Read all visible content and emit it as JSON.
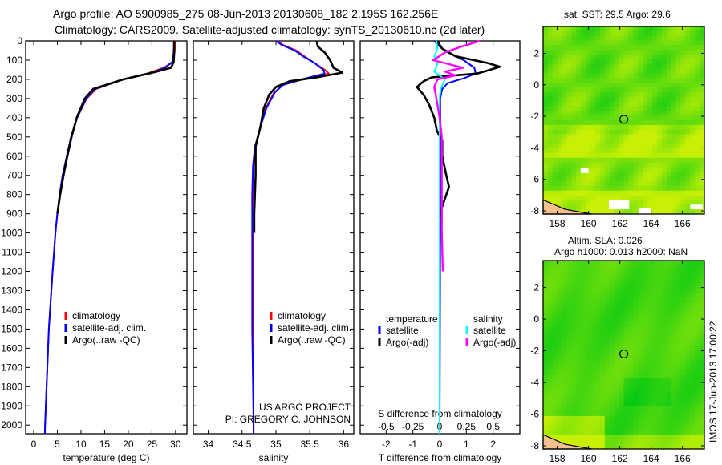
{
  "title": {
    "line1": "Argo profile: AO 5900985_275 08-Jun-2013 20130608_182 2.195S 162.256E",
    "line2": "Climatology: CARS2009. Satellite-adjusted climatology: synTS_20130610.nc (2d later)"
  },
  "credit": {
    "line1": "US ARGO PROJECT",
    "line2": "PI: GREGORY C. JOHNSON"
  },
  "side_stamp": "IMOS 17-Jun-2013 17:00:22",
  "colors": {
    "climatology": "#ff0000",
    "satellite": "#0000ff",
    "argo": "#000000",
    "sal_sat": "#00ffff",
    "sal_argo": "#ff00ff"
  },
  "chart_data": [
    {
      "type": "line",
      "id": "temperature",
      "xlabel": "temperature (deg C)",
      "ylabel": "",
      "xlim": [
        -1.7,
        32.4
      ],
      "ylim": [
        2045,
        0
      ],
      "xticks": [
        0,
        5,
        10,
        15,
        20,
        25,
        30
      ],
      "yticks": [
        0,
        100,
        200,
        300,
        400,
        500,
        600,
        700,
        800,
        900,
        1000,
        1100,
        1200,
        1300,
        1400,
        1500,
        1600,
        1700,
        1800,
        1900,
        2000
      ],
      "legend": [
        "climatology",
        "satellite-adj. clim.",
        "Argo(..raw -QC)"
      ],
      "series": [
        {
          "name": "climatology",
          "color": "#ff0000",
          "points": [
            [
              0,
              29.9
            ],
            [
              60,
              29.8
            ],
            [
              110,
              29.4
            ],
            [
              140,
              27.5
            ],
            [
              170,
              24
            ],
            [
              200,
              19
            ],
            [
              250,
              13.2
            ],
            [
              300,
              11.2
            ],
            [
              400,
              9.2
            ],
            [
              500,
              7.9
            ],
            [
              600,
              7
            ],
            [
              700,
              6.1
            ],
            [
              800,
              5.5
            ],
            [
              900,
              5
            ],
            [
              1000,
              4.6
            ],
            [
              1200,
              4
            ],
            [
              1500,
              3.2
            ],
            [
              2000,
              2.4
            ],
            [
              2045,
              2.35
            ]
          ]
        },
        {
          "name": "satellite",
          "color": "#0000ff",
          "points": [
            [
              0,
              29.7
            ],
            [
              60,
              29.6
            ],
            [
              110,
              29.3
            ],
            [
              140,
              27.8
            ],
            [
              170,
              24.5
            ],
            [
              200,
              19
            ],
            [
              250,
              13
            ],
            [
              300,
              11.1
            ],
            [
              400,
              9.2
            ],
            [
              500,
              7.9
            ],
            [
              600,
              7
            ],
            [
              700,
              6.1
            ],
            [
              800,
              5.5
            ],
            [
              900,
              5
            ],
            [
              1000,
              4.6
            ],
            [
              1200,
              4
            ],
            [
              1500,
              3.2
            ],
            [
              2000,
              2.4
            ],
            [
              2045,
              2.35
            ]
          ]
        },
        {
          "name": "argo",
          "color": "#000000",
          "points": [
            [
              0,
              29.7
            ],
            [
              60,
              29.7
            ],
            [
              110,
              29.6
            ],
            [
              140,
              29
            ],
            [
              160,
              26
            ],
            [
              200,
              19
            ],
            [
              250,
              12.6
            ],
            [
              300,
              10.8
            ],
            [
              400,
              9.1
            ],
            [
              500,
              8
            ],
            [
              600,
              7.1
            ],
            [
              700,
              6.3
            ],
            [
              800,
              5.6
            ],
            [
              900,
              5
            ]
          ]
        }
      ]
    },
    {
      "type": "line",
      "id": "salinity",
      "xlabel": "salinity",
      "ylabel": "",
      "xlim": [
        33.78,
        36.15
      ],
      "ylim": [
        2045,
        0
      ],
      "xticks": [
        34,
        34.5,
        35,
        35.5,
        36
      ],
      "legend": [
        "climatology",
        "satellite-adj. clim.",
        "Argo(..raw -QC)"
      ],
      "series": [
        {
          "name": "climatology",
          "color": "#ff0000",
          "points": [
            [
              0,
              35.02
            ],
            [
              20,
              35.1
            ],
            [
              50,
              35.3
            ],
            [
              80,
              35.42
            ],
            [
              110,
              35.55
            ],
            [
              150,
              35.72
            ],
            [
              170,
              35.78
            ],
            [
              200,
              35.4
            ],
            [
              230,
              35.1
            ],
            [
              270,
              34.97
            ],
            [
              350,
              34.85
            ],
            [
              450,
              34.77
            ],
            [
              550,
              34.7
            ],
            [
              650,
              34.67
            ],
            [
              800,
              34.66
            ],
            [
              1000,
              34.66
            ],
            [
              1500,
              34.66
            ],
            [
              2000,
              34.67
            ],
            [
              2045,
              34.67
            ]
          ]
        },
        {
          "name": "satellite",
          "color": "#0000ff",
          "points": [
            [
              0,
              35.0
            ],
            [
              20,
              35.08
            ],
            [
              50,
              35.28
            ],
            [
              80,
              35.4
            ],
            [
              110,
              35.55
            ],
            [
              150,
              35.7
            ],
            [
              170,
              35.72
            ],
            [
              200,
              35.38
            ],
            [
              230,
              35.1
            ],
            [
              270,
              34.98
            ],
            [
              350,
              34.86
            ],
            [
              450,
              34.77
            ],
            [
              550,
              34.69
            ],
            [
              650,
              34.66
            ],
            [
              800,
              34.65
            ],
            [
              1000,
              34.65
            ],
            [
              1500,
              34.65
            ],
            [
              2000,
              34.67
            ],
            [
              2045,
              34.67
            ]
          ]
        },
        {
          "name": "argo",
          "color": "#000000",
          "points": [
            [
              0,
              35.6
            ],
            [
              30,
              35.62
            ],
            [
              60,
              35.72
            ],
            [
              100,
              35.8
            ],
            [
              140,
              35.85
            ],
            [
              165,
              35.98
            ],
            [
              190,
              35.6
            ],
            [
              210,
              35.2
            ],
            [
              240,
              35.0
            ],
            [
              280,
              34.9
            ],
            [
              350,
              34.82
            ],
            [
              450,
              34.77
            ],
            [
              550,
              34.7
            ],
            [
              700,
              34.7
            ],
            [
              900,
              34.68
            ],
            [
              1000,
              34.68
            ]
          ]
        }
      ]
    },
    {
      "type": "line",
      "id": "difference",
      "xlabel": "T difference from climatology",
      "x2label": "S difference from climatology",
      "xlim": [
        -2.97,
        3.0
      ],
      "ylim": [
        2045,
        0
      ],
      "xticks": [
        -2,
        -1,
        0,
        1,
        2
      ],
      "x2ticks": [
        -0.5,
        -0.25,
        0,
        0.25,
        0.5
      ],
      "legend_titles": [
        "temperature",
        "salinity"
      ],
      "legend": [
        "satellite",
        "Argo(-adj)",
        "satellite",
        "Argo(-adj)"
      ],
      "series": [
        {
          "name": "T satellite",
          "color": "#0000ff",
          "quantity": "T",
          "points": [
            [
              0,
              -0.2
            ],
            [
              30,
              0
            ],
            [
              60,
              0.3
            ],
            [
              100,
              0.9
            ],
            [
              140,
              1.3
            ],
            [
              170,
              1.35
            ],
            [
              195,
              0.9
            ],
            [
              220,
              0.3
            ],
            [
              250,
              0.1
            ],
            [
              300,
              0.02
            ],
            [
              600,
              0.03
            ],
            [
              2045,
              0.0
            ]
          ]
        },
        {
          "name": "T argo",
          "color": "#000000",
          "quantity": "T",
          "points": [
            [
              0,
              -0.1
            ],
            [
              40,
              0.1
            ],
            [
              80,
              0.6
            ],
            [
              115,
              1.8
            ],
            [
              135,
              2.25
            ],
            [
              150,
              1.9
            ],
            [
              170,
              1.4
            ],
            [
              190,
              -0.3
            ],
            [
              210,
              -0.6
            ],
            [
              240,
              -0.85
            ],
            [
              280,
              -0.6
            ],
            [
              330,
              -0.4
            ],
            [
              400,
              -0.2
            ],
            [
              470,
              -0.1
            ],
            [
              520,
              0.1
            ],
            [
              600,
              0.1
            ],
            [
              700,
              0.25
            ],
            [
              760,
              0.35
            ],
            [
              820,
              0.2
            ],
            [
              880,
              0.05
            ],
            [
              920,
              0.0
            ]
          ]
        },
        {
          "name": "S satellite",
          "color": "#00ffff",
          "quantity": "S",
          "points": [
            [
              0,
              -0.03
            ],
            [
              40,
              -0.02
            ],
            [
              80,
              -0.05
            ],
            [
              120,
              -0.02
            ],
            [
              160,
              -0.05
            ],
            [
              200,
              0.05
            ],
            [
              250,
              0.01
            ],
            [
              300,
              0.0
            ],
            [
              2045,
              0.0
            ]
          ]
        },
        {
          "name": "S argo",
          "color": "#ff00ff",
          "quantity": "S",
          "points": [
            [
              0,
              0.38
            ],
            [
              30,
              0.2
            ],
            [
              60,
              0.05
            ],
            [
              100,
              -0.06
            ],
            [
              140,
              0.22
            ],
            [
              160,
              0.05
            ],
            [
              180,
              0.15
            ],
            [
              200,
              -0.02
            ],
            [
              240,
              -0.05
            ],
            [
              300,
              -0.03
            ],
            [
              400,
              0.0
            ],
            [
              500,
              0.02
            ],
            [
              700,
              0.02
            ],
            [
              1000,
              0.02
            ],
            [
              1200,
              0.03
            ]
          ]
        }
      ]
    },
    {
      "type": "heatmap",
      "id": "sst-map",
      "title": "sat. SST: 29.5 Argo: 29.6",
      "xlim": [
        157.1,
        167.4
      ],
      "ylim": [
        -8.2,
        3.7
      ],
      "xticks": [
        158,
        160,
        162,
        164,
        166
      ],
      "yticks": [
        2,
        0,
        -2,
        -4,
        -6,
        -8
      ],
      "marker": [
        162.256,
        -2.195
      ]
    },
    {
      "type": "heatmap",
      "id": "sla-map",
      "title": "Altim. SLA: 0.026",
      "subtitle": "Argo h1000: 0.013 h2000: NaN",
      "xlim": [
        157.1,
        167.4
      ],
      "ylim": [
        -8.2,
        3.7
      ],
      "xticks": [
        158,
        160,
        162,
        164,
        166
      ],
      "yticks": [
        2,
        0,
        -2,
        -4,
        -6,
        -8
      ],
      "marker": [
        162.256,
        -2.195
      ]
    }
  ]
}
